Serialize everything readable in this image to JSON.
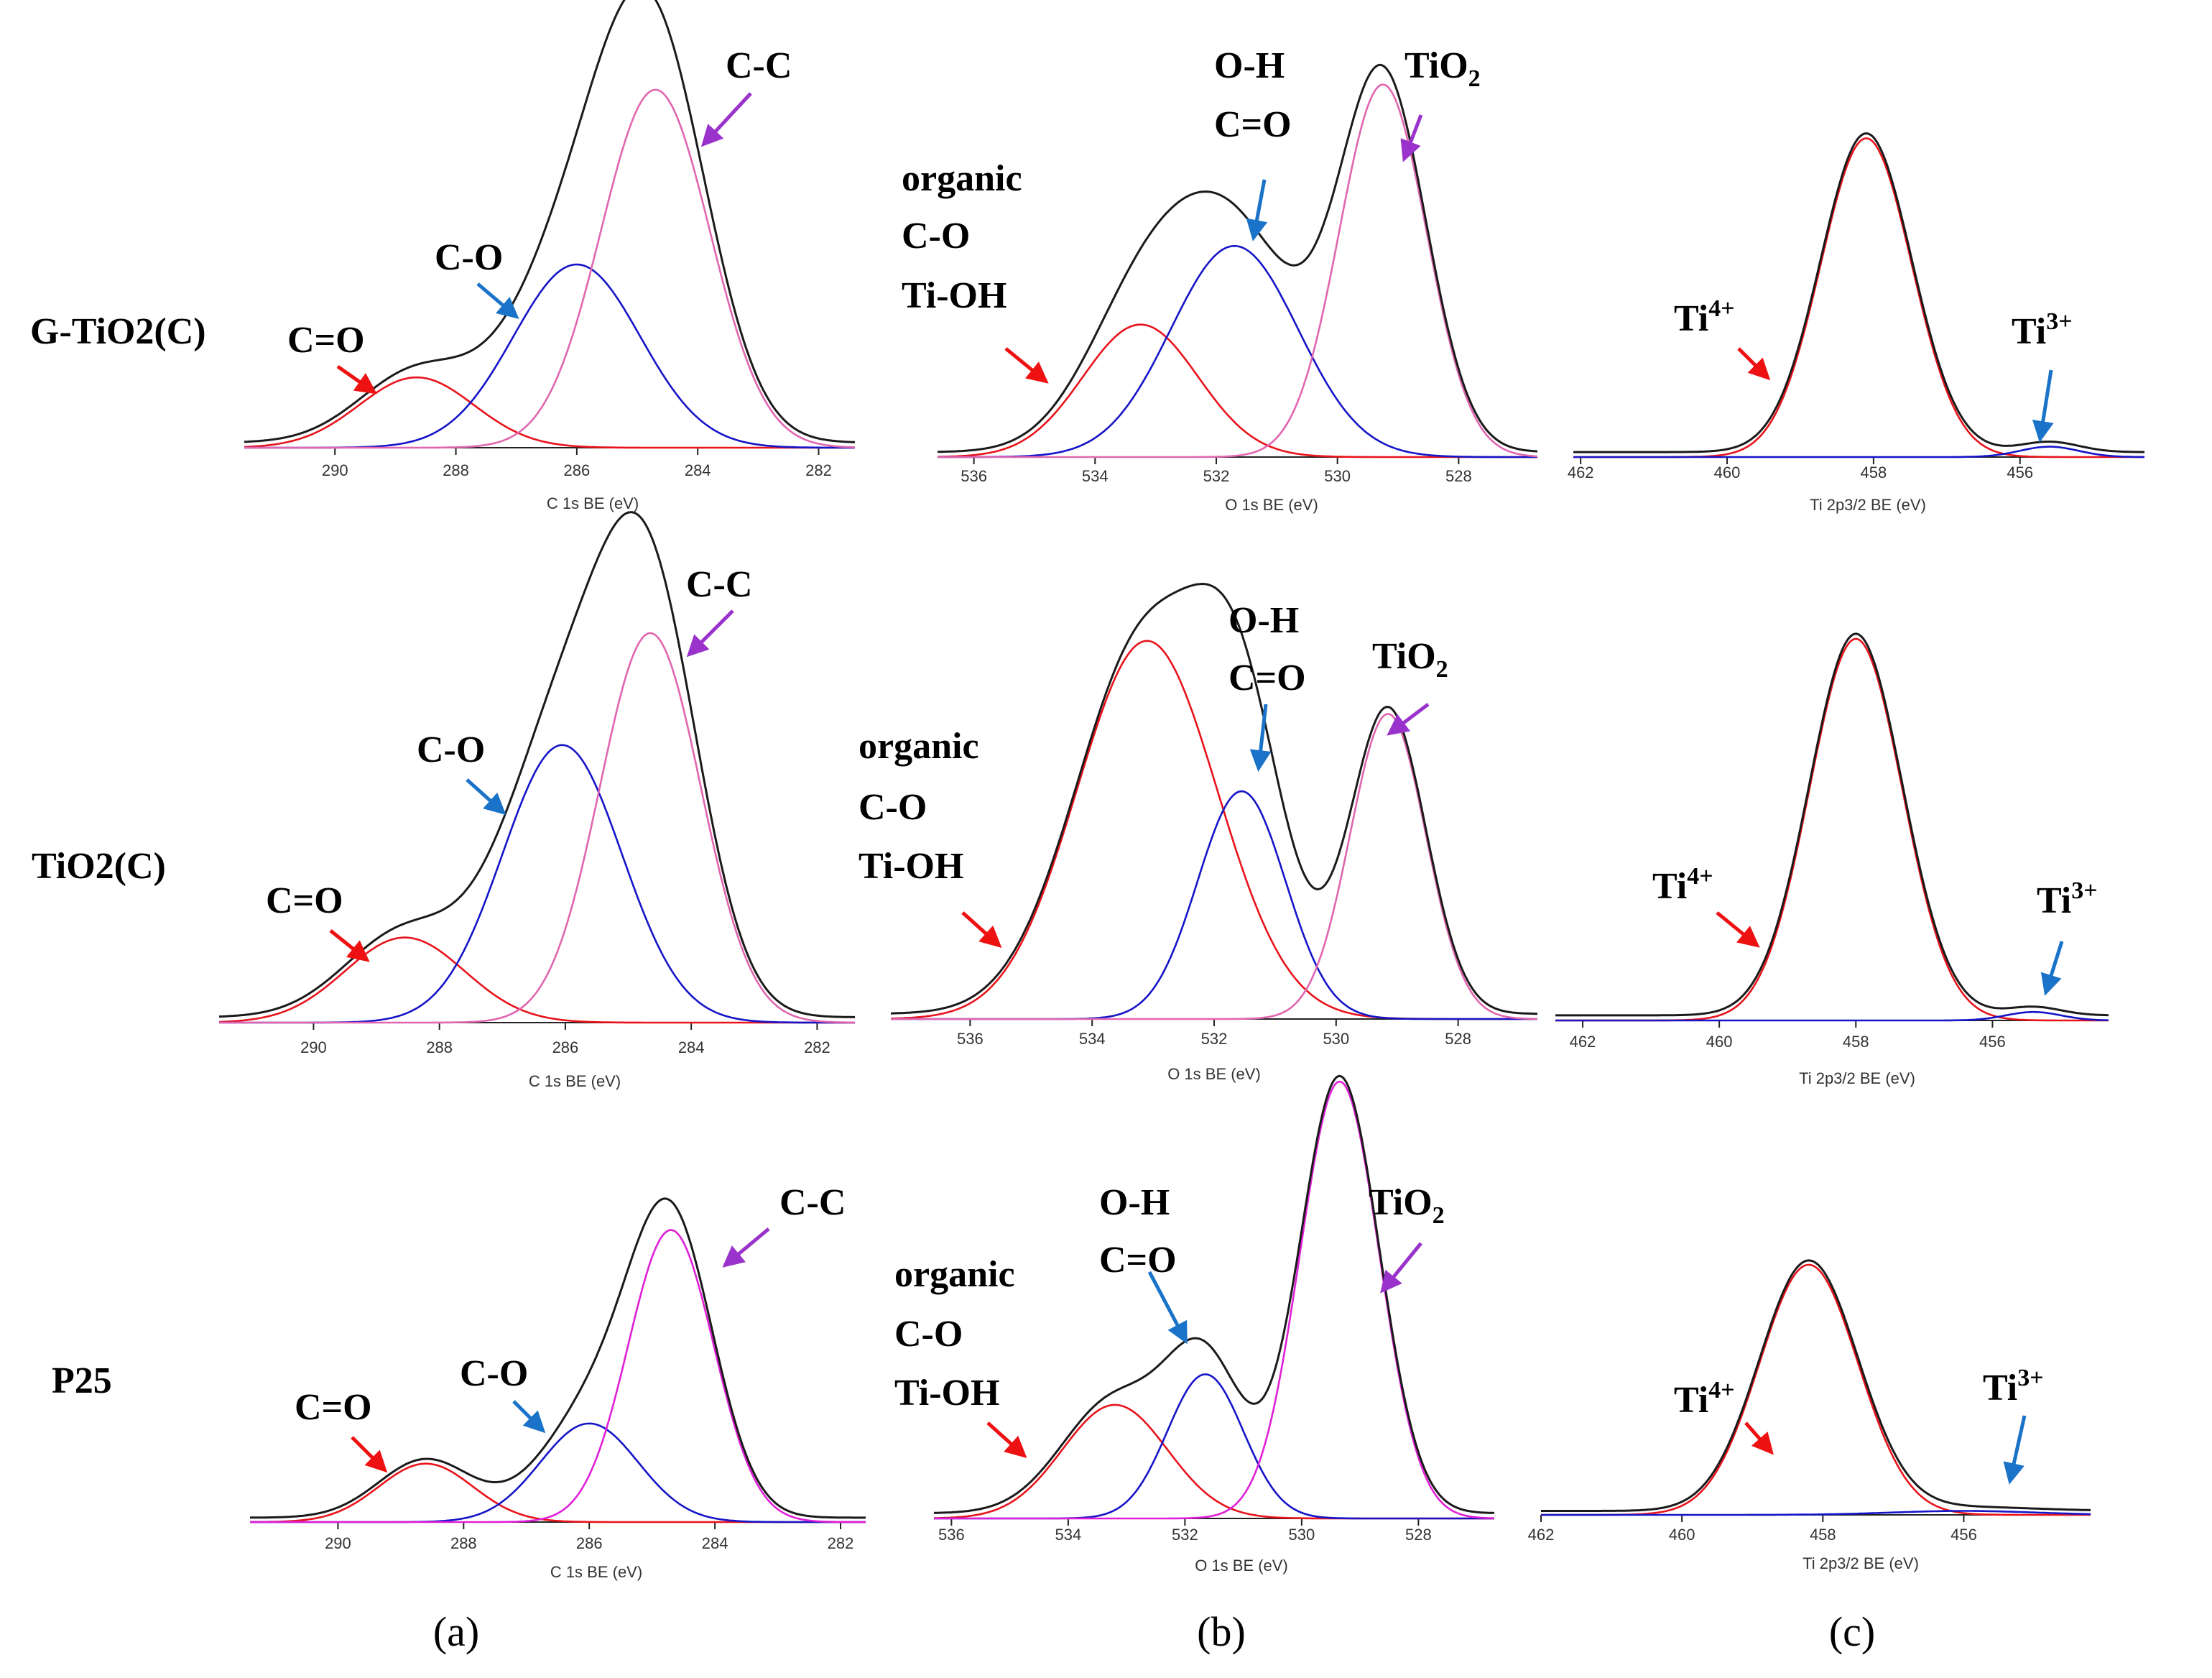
{
  "colors": {
    "envelope": "#1a1a1a",
    "red": "#e8131b",
    "blue": "#1515c8",
    "pink": "#e066b0",
    "magenta": "#e020d8",
    "arrow_red": "#ee1111",
    "arrow_blue": "#1a73c8",
    "arrow_purple": "#9933cc"
  },
  "samples": [
    "G-TiO2(C)",
    "TiO2(C)",
    "P25"
  ],
  "panel_letters": [
    "(a)",
    "(b)",
    "(c)"
  ],
  "chart_data": [
    {
      "id": "a1",
      "type": "line",
      "row": 0,
      "col": 0,
      "title": "",
      "xlabel": "C 1s   BE (eV)",
      "ylabel": "",
      "xlim": [
        291.5,
        281.4
      ],
      "x_reversed": true,
      "ticks": [
        290,
        288,
        286,
        284,
        282
      ],
      "series": [
        {
          "name": "C=O",
          "color": "red",
          "center": 288.65,
          "height": 0.165,
          "sigma": 0.95
        },
        {
          "name": "C-O",
          "color": "blue",
          "center": 286.0,
          "height": 0.43,
          "sigma": 1.05
        },
        {
          "name": "C-C",
          "color": "pink",
          "center": 284.7,
          "height": 0.84,
          "sigma": 0.9
        }
      ],
      "annotations": [
        {
          "label": "C=O",
          "arrow_color": "arrow_red"
        },
        {
          "label": "C-O",
          "arrow_color": "arrow_blue"
        },
        {
          "label": "C-C",
          "arrow_color": "arrow_purple"
        }
      ]
    },
    {
      "id": "b1",
      "type": "line",
      "row": 0,
      "col": 1,
      "title": "",
      "xlabel": "O 1s   BE (eV)",
      "ylabel": "",
      "xlim": [
        536.6,
        526.7
      ],
      "x_reversed": true,
      "ticks": [
        536,
        534,
        532,
        530,
        528
      ],
      "series": [
        {
          "name": "organic C-O / Ti-OH",
          "color": "red",
          "center": 533.25,
          "height": 0.32,
          "sigma": 0.95
        },
        {
          "name": "O-H / C=O",
          "color": "blue",
          "center": 531.7,
          "height": 0.51,
          "sigma": 1.05
        },
        {
          "name": "TiO2",
          "color": "pink",
          "center": 529.25,
          "height": 0.9,
          "sigma": 0.72
        }
      ],
      "annotations": [
        {
          "label": "organic",
          "arrow_color": "arrow_red"
        },
        {
          "label": "C-O",
          "arrow_color": ""
        },
        {
          "label": "Ti-OH",
          "arrow_color": ""
        },
        {
          "label": "O-H",
          "arrow_color": "arrow_blue"
        },
        {
          "label": "C=O",
          "arrow_color": ""
        },
        {
          "label": "TiO",
          "subscript": "2",
          "arrow_color": "arrow_purple"
        }
      ]
    },
    {
      "id": "c1",
      "type": "line",
      "row": 0,
      "col": 2,
      "title": "",
      "xlabel": "Ti   2p3/2   BE (eV)",
      "ylabel": "",
      "xlim": [
        462.1,
        454.3
      ],
      "x_reversed": true,
      "ticks": [
        462,
        460,
        458,
        456
      ],
      "series": [
        {
          "name": "Ti4+",
          "color": "red",
          "center": 458.1,
          "height": 0.77,
          "sigma": 0.62
        },
        {
          "name": "Ti3+",
          "color": "blue",
          "center": 455.6,
          "height": 0.025,
          "sigma": 0.4
        }
      ],
      "annotations": [
        {
          "label": "Ti",
          "superscript": "4+",
          "arrow_color": "arrow_red"
        },
        {
          "label": "Ti",
          "superscript": "3+",
          "arrow_color": "arrow_blue"
        }
      ]
    },
    {
      "id": "a2",
      "type": "line",
      "row": 1,
      "col": 0,
      "title": "",
      "xlabel": "C 1s   BE (eV)",
      "ylabel": "",
      "xlim": [
        291.5,
        281.4
      ],
      "x_reversed": true,
      "ticks": [
        290,
        288,
        286,
        284,
        282
      ],
      "series": [
        {
          "name": "C=O",
          "color": "red",
          "center": 288.55,
          "height": 0.19,
          "sigma": 0.95
        },
        {
          "name": "C-O",
          "color": "blue",
          "center": 286.05,
          "height": 0.62,
          "sigma": 0.95
        },
        {
          "name": "C-C",
          "color": "pink",
          "center": 284.65,
          "height": 0.87,
          "sigma": 0.8
        }
      ],
      "annotations": [
        {
          "label": "C=O",
          "arrow_color": "arrow_red"
        },
        {
          "label": "C-O",
          "arrow_color": "arrow_blue"
        },
        {
          "label": "C-C",
          "arrow_color": "arrow_purple"
        }
      ]
    },
    {
      "id": "b2",
      "type": "line",
      "row": 1,
      "col": 1,
      "title": "",
      "xlabel": "O 1s   BE (eV)",
      "ylabel": "",
      "xlim": [
        537.3,
        526.7
      ],
      "x_reversed": true,
      "ticks": [
        536,
        534,
        532,
        530,
        528
      ],
      "series": [
        {
          "name": "organic C-O / Ti-OH",
          "color": "red",
          "center": 533.1,
          "height": 0.88,
          "sigma": 1.15
        },
        {
          "name": "O-H / C=O",
          "color": "blue",
          "center": 531.55,
          "height": 0.53,
          "sigma": 0.72
        },
        {
          "name": "TiO2",
          "color": "pink",
          "center": 529.15,
          "height": 0.71,
          "sigma": 0.62
        }
      ],
      "annotations": [
        {
          "label": "organic",
          "arrow_color": "arrow_red"
        },
        {
          "label": "C-O",
          "arrow_color": ""
        },
        {
          "label": "Ti-OH",
          "arrow_color": ""
        },
        {
          "label": "O-H",
          "arrow_color": "arrow_blue"
        },
        {
          "label": "C=O",
          "arrow_color": ""
        },
        {
          "label": "TiO",
          "subscript": "2",
          "arrow_color": "arrow_purple"
        }
      ]
    },
    {
      "id": "c2",
      "type": "line",
      "row": 1,
      "col": 2,
      "title": "",
      "xlabel": "Ti   2p3/2   BE (eV)",
      "ylabel": "",
      "xlim": [
        462.4,
        454.3
      ],
      "x_reversed": true,
      "ticks": [
        462,
        460,
        458,
        456
      ],
      "series": [
        {
          "name": "Ti4+",
          "color": "red",
          "center": 458.0,
          "height": 0.9,
          "sigma": 0.68
        },
        {
          "name": "Ti3+",
          "color": "blue",
          "center": 455.4,
          "height": 0.02,
          "sigma": 0.4
        }
      ],
      "annotations": [
        {
          "label": "Ti",
          "superscript": "4+",
          "arrow_color": "arrow_red"
        },
        {
          "label": "Ti",
          "superscript": "3+",
          "arrow_color": "arrow_blue"
        }
      ]
    },
    {
      "id": "a3",
      "type": "line",
      "row": 2,
      "col": 0,
      "title": "",
      "xlabel": "C 1s   BE (eV)",
      "ylabel": "",
      "xlim": [
        291.4,
        281.6
      ],
      "x_reversed": true,
      "ticks": [
        290,
        288,
        286,
        284,
        282
      ],
      "series": [
        {
          "name": "C=O",
          "color": "red",
          "center": 288.6,
          "height": 0.16,
          "sigma": 0.75
        },
        {
          "name": "C-O",
          "color": "blue",
          "center": 286.0,
          "height": 0.27,
          "sigma": 0.78
        },
        {
          "name": "C-C",
          "color": "magenta",
          "center": 284.7,
          "height": 0.8,
          "sigma": 0.68
        }
      ],
      "annotations": [
        {
          "label": "C=O",
          "arrow_color": "arrow_red"
        },
        {
          "label": "C-O",
          "arrow_color": "arrow_blue"
        },
        {
          "label": "C-C",
          "arrow_color": "arrow_purple"
        }
      ]
    },
    {
      "id": "b3",
      "type": "line",
      "row": 2,
      "col": 1,
      "title": "",
      "xlabel": "O 1s   BE (eV)",
      "ylabel": "",
      "xlim": [
        536.3,
        526.7
      ],
      "x_reversed": true,
      "ticks": [
        536,
        534,
        532,
        530,
        528
      ],
      "series": [
        {
          "name": "organic C-O / Ti-OH",
          "color": "red",
          "center": 533.2,
          "height": 0.26,
          "sigma": 0.9
        },
        {
          "name": "O-H / C=O",
          "color": "blue",
          "center": 531.65,
          "height": 0.33,
          "sigma": 0.65
        },
        {
          "name": "TiO2",
          "color": "magenta",
          "center": 529.35,
          "height": 1.0,
          "sigma": 0.68
        }
      ],
      "annotations": [
        {
          "label": "organic",
          "arrow_color": "arrow_red"
        },
        {
          "label": "C-O",
          "arrow_color": ""
        },
        {
          "label": "Ti-OH",
          "arrow_color": ""
        },
        {
          "label": "O-H",
          "arrow_color": "arrow_blue"
        },
        {
          "label": "C=O",
          "arrow_color": ""
        },
        {
          "label": "TiO",
          "subscript": "2",
          "arrow_color": "arrow_purple"
        }
      ]
    },
    {
      "id": "c3",
      "type": "line",
      "row": 2,
      "col": 2,
      "title": "",
      "xlabel": "Ti   2p3/2   BE (eV)",
      "ylabel": "",
      "xlim": [
        462.0,
        454.2
      ],
      "x_reversed": true,
      "ticks": [
        462,
        460,
        458,
        456
      ],
      "series": [
        {
          "name": "Ti4+",
          "color": "red",
          "center": 458.2,
          "height": 0.76,
          "sigma": 0.7
        },
        {
          "name": "Ti3+",
          "color": "blue",
          "center": 456.0,
          "height": 0.012,
          "sigma": 1.0
        }
      ],
      "annotations": [
        {
          "label": "Ti",
          "superscript": "4+",
          "arrow_color": "arrow_red"
        },
        {
          "label": "Ti",
          "superscript": "3+",
          "arrow_color": "arrow_blue"
        }
      ]
    }
  ]
}
